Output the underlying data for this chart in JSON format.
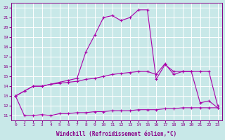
{
  "xlabel": "Windchill (Refroidissement éolien,°C)",
  "background_color": "#c8e8e8",
  "grid_color": "#ffffff",
  "line_color": "#aa00aa",
  "xlim": [
    -0.5,
    23.5
  ],
  "ylim": [
    10.5,
    22.5
  ],
  "xticks": [
    0,
    1,
    2,
    3,
    4,
    5,
    6,
    7,
    8,
    9,
    10,
    11,
    12,
    13,
    14,
    15,
    16,
    17,
    18,
    19,
    20,
    21,
    22,
    23
  ],
  "yticks": [
    11,
    12,
    13,
    14,
    15,
    16,
    17,
    18,
    19,
    20,
    21,
    22
  ],
  "line1_x": [
    0,
    1,
    2,
    3,
    4,
    5,
    6,
    7,
    8,
    9,
    10,
    11,
    12,
    13,
    14,
    15,
    16,
    17,
    18,
    19,
    20,
    21,
    22,
    23
  ],
  "line1_y": [
    13.0,
    13.5,
    14.0,
    14.0,
    14.2,
    14.4,
    14.6,
    14.8,
    17.5,
    19.2,
    21.0,
    21.2,
    20.7,
    21.0,
    21.8,
    21.8,
    14.7,
    16.2,
    15.5,
    15.5,
    15.5,
    12.3,
    12.5,
    11.8
  ],
  "line2_x": [
    0,
    1,
    2,
    3,
    4,
    5,
    6,
    7,
    8,
    9,
    10,
    11,
    12,
    13,
    14,
    15,
    16,
    17,
    18,
    19,
    20,
    21,
    22,
    23
  ],
  "line2_y": [
    13.0,
    13.5,
    14.0,
    14.0,
    14.2,
    14.3,
    14.4,
    14.5,
    14.7,
    14.8,
    15.0,
    15.2,
    15.3,
    15.4,
    15.5,
    15.5,
    15.2,
    16.3,
    15.2,
    15.5,
    15.5,
    15.5,
    15.5,
    12.0
  ],
  "line3_x": [
    0,
    1,
    2,
    3,
    4,
    5,
    6,
    7,
    8,
    9,
    10,
    11,
    12,
    13,
    14,
    15,
    16,
    17,
    18,
    19,
    20,
    21,
    22,
    23
  ],
  "line3_y": [
    13.0,
    11.0,
    11.0,
    11.1,
    11.0,
    11.2,
    11.2,
    11.3,
    11.3,
    11.4,
    11.4,
    11.5,
    11.5,
    11.5,
    11.6,
    11.6,
    11.6,
    11.7,
    11.7,
    11.8,
    11.8,
    11.8,
    11.8,
    11.8
  ]
}
